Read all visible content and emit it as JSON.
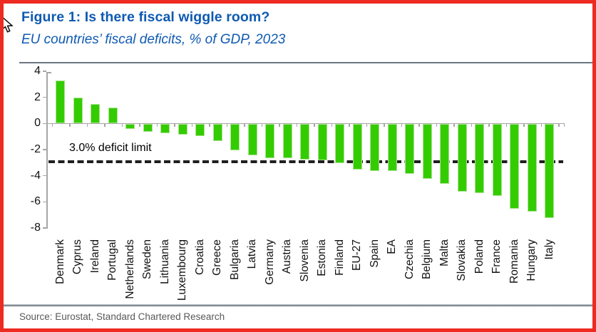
{
  "frame": {
    "border_color": "#ee2b21"
  },
  "header": {
    "title": "Figure 1: Is there fiscal wiggle room?",
    "subtitle": "EU countries’ fiscal deficits, % of GDP, 2023",
    "title_color": "#0f5ab2"
  },
  "footer": {
    "source": "Source: Eurostat, Standard Chartered Research"
  },
  "icons": {
    "cursor": "arrow-cursor"
  },
  "colors": {
    "bar_green": "#33cc00",
    "axis_gray": "#a6a6a6",
    "dashed_black": "#1f1f1f",
    "title_blue": "#0f5ab2",
    "source_gray": "#595959"
  },
  "chart_data": {
    "type": "bar",
    "title": "Figure 1: Is there fiscal wiggle room?",
    "subtitle": "EU countries’ fiscal deficits, % of GDP, 2023",
    "categories": [
      "Denmark",
      "Cyprus",
      "Ireland",
      "Portugal",
      "Netherlands",
      "Sweden",
      "Lithuania",
      "Luxembourg",
      "Croatia",
      "Greece",
      "Bulgaria",
      "Latvia",
      "Germany",
      "Austria",
      "Slovenia",
      "Estonia",
      "Finland",
      "EU-27",
      "Spain",
      "EA",
      "Czechia",
      "Belgium",
      "Malta",
      "Slovakia",
      "Poland",
      "France",
      "Romania",
      "Hungary",
      "Italy"
    ],
    "values": [
      3.3,
      2.0,
      1.5,
      1.2,
      -0.4,
      -0.6,
      -0.7,
      -0.8,
      -0.9,
      -1.3,
      -2.0,
      -2.4,
      -2.6,
      -2.6,
      -2.7,
      -2.8,
      -3.0,
      -3.5,
      -3.6,
      -3.6,
      -3.8,
      -4.2,
      -4.6,
      -5.2,
      -5.3,
      -5.5,
      -6.5,
      -6.7,
      -7.2
    ],
    "yticks": [
      4,
      2,
      0,
      -2,
      -4,
      -6,
      -8
    ],
    "ylim": [
      -8,
      4
    ],
    "grid": false,
    "legend": false,
    "bar_color": "#33cc00",
    "reference_line": {
      "value": -3.0,
      "label": "3.0% deficit limit",
      "style": "dashed",
      "color": "#1f1f1f"
    }
  }
}
